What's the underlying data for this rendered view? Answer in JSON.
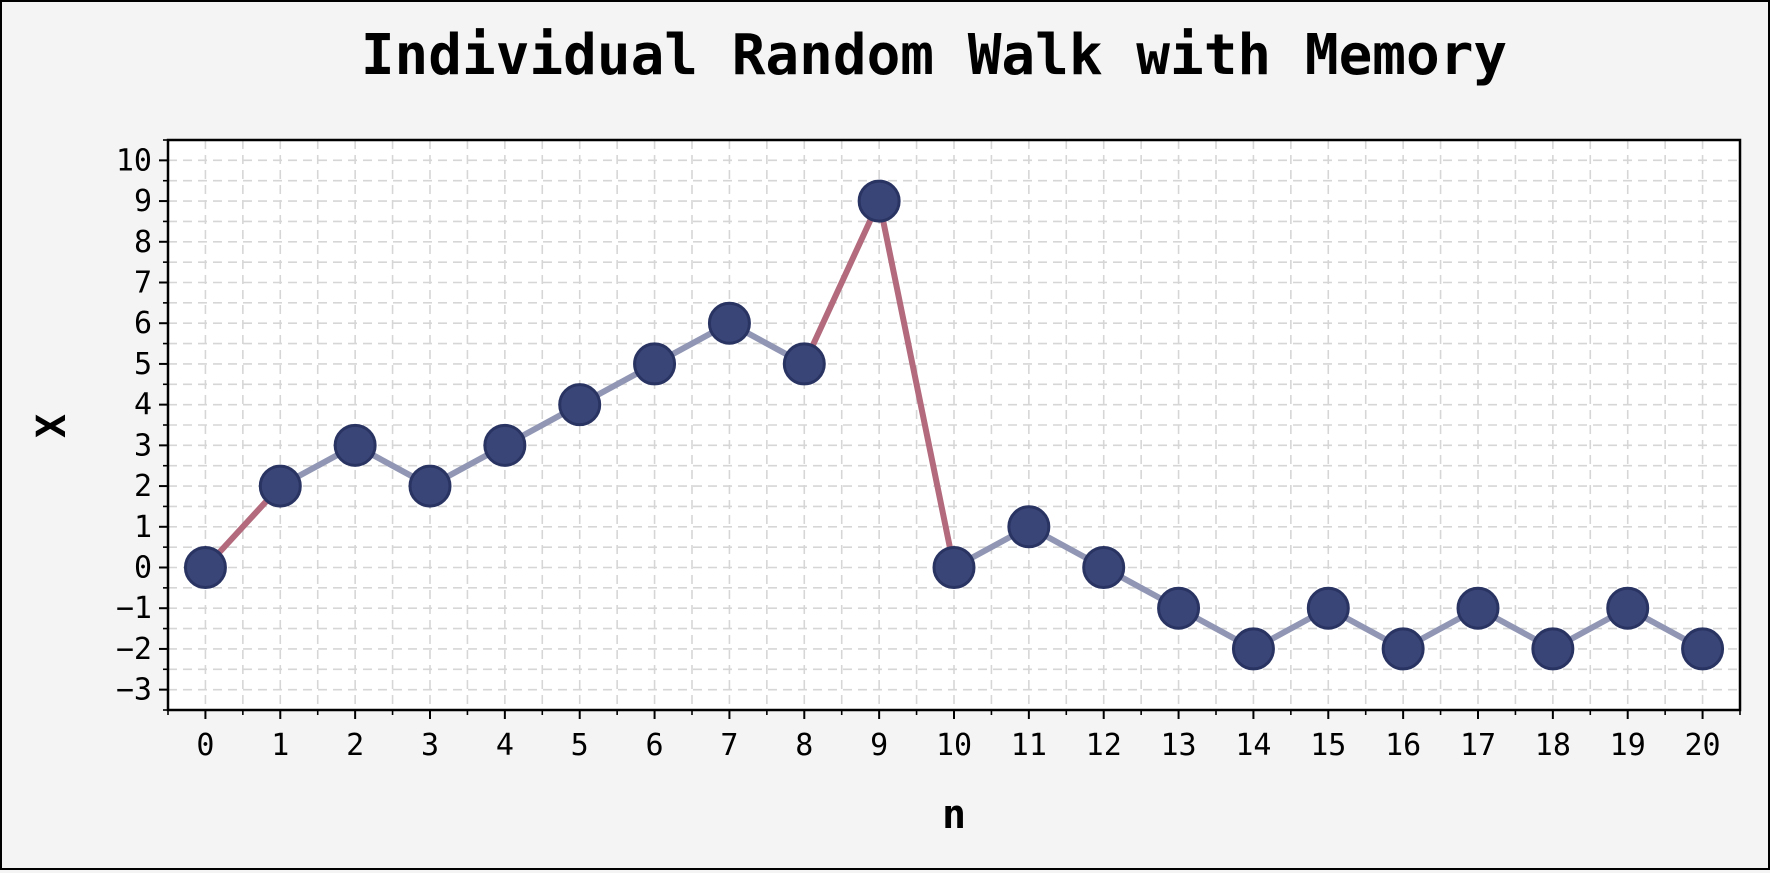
{
  "chart_data": {
    "type": "line",
    "title": "Individual Random Walk with Memory",
    "xlabel": "n",
    "ylabel": "X",
    "xlim": [
      -0.5,
      20.5
    ],
    "ylim": [
      -3.5,
      10.5
    ],
    "x_ticks": [
      0,
      1,
      2,
      3,
      4,
      5,
      6,
      7,
      8,
      9,
      10,
      11,
      12,
      13,
      14,
      15,
      16,
      17,
      18,
      19,
      20
    ],
    "y_ticks": [
      10,
      9,
      8,
      7,
      6,
      5,
      4,
      3,
      2,
      1,
      0,
      -1,
      -2,
      -3
    ],
    "y_tick_labels": [
      "10",
      "9",
      "8",
      "7",
      "6",
      "5",
      "4",
      "3",
      "2",
      "1",
      "0",
      "−1",
      "−2",
      "−3"
    ],
    "grid": true,
    "series": [
      {
        "x": [
          0,
          1,
          2,
          3,
          4,
          5,
          6,
          7,
          8,
          9,
          10,
          11,
          12,
          13,
          14,
          15,
          16,
          17,
          18,
          19,
          20
        ],
        "values": [
          0,
          2,
          3,
          2,
          3,
          4,
          5,
          6,
          5,
          9,
          0,
          1,
          0,
          -1,
          -2,
          -1,
          -2,
          -1,
          -2,
          -1,
          -2
        ],
        "marker_color": "#3a4577",
        "normal_step_color": "#9096b4",
        "jump_step_color": "#b26a7c"
      }
    ]
  }
}
